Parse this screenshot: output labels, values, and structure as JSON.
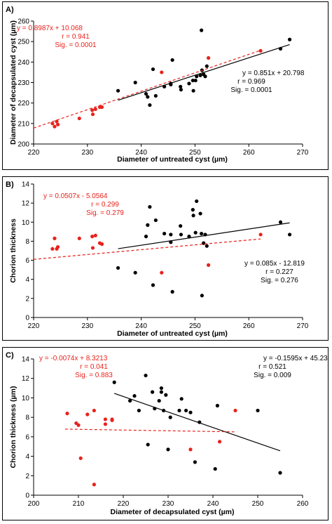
{
  "colors": {
    "black_series": "#000000",
    "red_series": "#e8221c"
  },
  "chart_data": [
    {
      "type": "scatter",
      "panel_label": "A)",
      "xlabel": "Diameter of untreated cyst (µm)",
      "ylabel": "Diameter of decapsulated cyst (µm)",
      "xlim": [
        220,
        270
      ],
      "ylim": [
        200,
        260
      ],
      "xticks": [
        220,
        230,
        240,
        250,
        260,
        270
      ],
      "yticks": [
        200,
        210,
        220,
        230,
        240,
        250,
        260
      ],
      "grid": false,
      "series": [
        {
          "color": "black",
          "points": [
            [
              235.7,
              226
            ],
            [
              238.9,
              230
            ],
            [
              240.9,
              224.5
            ],
            [
              241.2,
              223
            ],
            [
              241.6,
              219
            ],
            [
              242.2,
              236.5
            ],
            [
              242.7,
              223.5
            ],
            [
              244.3,
              228
            ],
            [
              245.5,
              229.5
            ],
            [
              245.5,
              229
            ],
            [
              245.8,
              241
            ],
            [
              247.3,
              228
            ],
            [
              247.4,
              226.5
            ],
            [
              248.9,
              229.5
            ],
            [
              249.6,
              231
            ],
            [
              249.7,
              226
            ],
            [
              250.1,
              231
            ],
            [
              250.3,
              233
            ],
            [
              251,
              233.5
            ],
            [
              251.2,
              255.5
            ],
            [
              251.3,
              236
            ],
            [
              251.6,
              234
            ],
            [
              251.9,
              233
            ],
            [
              252.2,
              238
            ],
            [
              265.9,
              246.5
            ],
            [
              267.6,
              251
            ]
          ],
          "trendline": {
            "slope": 0.851,
            "intercept": 20.798,
            "x_range": [
              235.7,
              267.6
            ]
          },
          "annotation": [
            "y = 0.851x + 20.798",
            "r = 0.969",
            "Sig. = 0.0001"
          ]
        },
        {
          "color": "red",
          "points": [
            [
              223.5,
              210
            ],
            [
              223.9,
              208.5
            ],
            [
              224.3,
              211
            ],
            [
              224.5,
              209.5
            ],
            [
              228.5,
              212.5
            ],
            [
              230.9,
              216.5
            ],
            [
              231,
              214.5
            ],
            [
              231.5,
              217
            ],
            [
              232.3,
              218
            ],
            [
              232.7,
              218
            ],
            [
              243.8,
              235
            ],
            [
              252.5,
              242
            ],
            [
              262.2,
              245.5
            ]
          ],
          "trendline": {
            "slope": 0.8987,
            "intercept": 10.068,
            "x_range": [
              220,
              262.2
            ]
          },
          "annotation": [
            "y = 0.8987x + 10.068",
            "r = 0.941",
            "Sig. = 0.0001"
          ]
        }
      ]
    },
    {
      "type": "scatter",
      "panel_label": "B)",
      "xlabel": "Diameter of untreated cyst (µm)",
      "ylabel": "Chorion thickness",
      "xlim": [
        220,
        270
      ],
      "ylim": [
        0,
        14
      ],
      "xticks": [
        220,
        230,
        240,
        250,
        260,
        270
      ],
      "yticks": [
        0,
        2,
        4,
        6,
        8,
        10,
        12,
        14
      ],
      "grid": false,
      "series": [
        {
          "color": "black",
          "points": [
            [
              235.7,
              5.2
            ],
            [
              238.9,
              4.7
            ],
            [
              240.9,
              8.5
            ],
            [
              241.2,
              9.7
            ],
            [
              241.6,
              11.6
            ],
            [
              242.2,
              3.4
            ],
            [
              242.7,
              10.2
            ],
            [
              244.3,
              8.8
            ],
            [
              245.5,
              8.7
            ],
            [
              245.5,
              7.9
            ],
            [
              245.8,
              2.7
            ],
            [
              247.3,
              9.6
            ],
            [
              247.4,
              8.7
            ],
            [
              248.9,
              8.5
            ],
            [
              249.6,
              11.3
            ],
            [
              249.7,
              10.7
            ],
            [
              250.1,
              8.9
            ],
            [
              250.3,
              12.2
            ],
            [
              251,
              10.9
            ],
            [
              251.2,
              8.8
            ],
            [
              251.3,
              2.3
            ],
            [
              251.6,
              7.8
            ],
            [
              251.9,
              8.7
            ],
            [
              252.2,
              7.5
            ],
            [
              265.9,
              10
            ],
            [
              267.6,
              8.7
            ]
          ],
          "trendline": {
            "slope": 0.085,
            "intercept": -12.819,
            "x_range": [
              235.7,
              267.6
            ]
          },
          "annotation": [
            "y = 0.085x - 12.819",
            "r = 0.227",
            "Sig. = 0.276"
          ]
        },
        {
          "color": "red",
          "points": [
            [
              223.5,
              7.2
            ],
            [
              223.9,
              8.3
            ],
            [
              224.3,
              7.2
            ],
            [
              224.5,
              7.4
            ],
            [
              228.5,
              8.3
            ],
            [
              230.9,
              8.5
            ],
            [
              231,
              7.3
            ],
            [
              231.5,
              8.6
            ],
            [
              232.3,
              7.8
            ],
            [
              232.7,
              7.7
            ],
            [
              243.8,
              4.7
            ],
            [
              252.5,
              5.5
            ],
            [
              262.2,
              8.7
            ]
          ],
          "trendline": {
            "slope": 0.0507,
            "intercept": -5.0564,
            "x_range": [
              220,
              262.2
            ]
          },
          "annotation": [
            "y = 0.0507x - 5.0564",
            "r = 0.299",
            "Sig. = 0.279"
          ]
        }
      ]
    },
    {
      "type": "scatter",
      "panel_label": "C)",
      "xlabel": "Diameter of decapsulated cyst (µm)",
      "ylabel": "Chorion thickness (µm)",
      "xlim": [
        200,
        260
      ],
      "ylim": [
        0,
        14
      ],
      "xticks": [
        200,
        210,
        220,
        230,
        240,
        250,
        260
      ],
      "yticks": [
        0,
        2,
        4,
        6,
        8,
        10,
        12,
        14
      ],
      "grid": false,
      "series": [
        {
          "color": "black",
          "points": [
            [
              218,
              11.6
            ],
            [
              221.5,
              9.7
            ],
            [
              222.5,
              10.2
            ],
            [
              223.5,
              8.7
            ],
            [
              225,
              12.3
            ],
            [
              225.5,
              5.2
            ],
            [
              226.5,
              10.6
            ],
            [
              227,
              8.9
            ],
            [
              228,
              9.7
            ],
            [
              228.5,
              10.6
            ],
            [
              228.5,
              11
            ],
            [
              229,
              8.7
            ],
            [
              229.5,
              10.3
            ],
            [
              230,
              4.7
            ],
            [
              230.5,
              8
            ],
            [
              232.5,
              8.7
            ],
            [
              233,
              9.9
            ],
            [
              234,
              8.7
            ],
            [
              235,
              8.5
            ],
            [
              236,
              3.4
            ],
            [
              237,
              7.5
            ],
            [
              240.5,
              2.7
            ],
            [
              241,
              9.2
            ],
            [
              250,
              8.7
            ],
            [
              255,
              2.3
            ]
          ],
          "trendline": {
            "slope": -0.1595,
            "intercept": 45.231,
            "x_range": [
              218,
              255
            ]
          },
          "annotation": [
            "y = -0.1595x + 45.231",
            "r = 0.521",
            "Sig. = 0.009"
          ]
        },
        {
          "color": "red",
          "points": [
            [
              207.5,
              8.4
            ],
            [
              209.5,
              7.4
            ],
            [
              210,
              7.2
            ],
            [
              210.5,
              3.8
            ],
            [
              212,
              8.3
            ],
            [
              213.5,
              8.7
            ],
            [
              213.5,
              1.1
            ],
            [
              216,
              7.8
            ],
            [
              216,
              7.3
            ],
            [
              217.5,
              7.7
            ],
            [
              217.5,
              7.8
            ],
            [
              235,
              4.7
            ],
            [
              241.5,
              5.5
            ],
            [
              245,
              8.7
            ]
          ],
          "trendline": {
            "slope": -0.0074,
            "intercept": 8.3213,
            "x_range": [
              207,
              245
            ]
          },
          "annotation": [
            "y = -0.0074x + 8.3213",
            "r = 0.041",
            "Sig.  = 0.883"
          ]
        }
      ]
    }
  ]
}
